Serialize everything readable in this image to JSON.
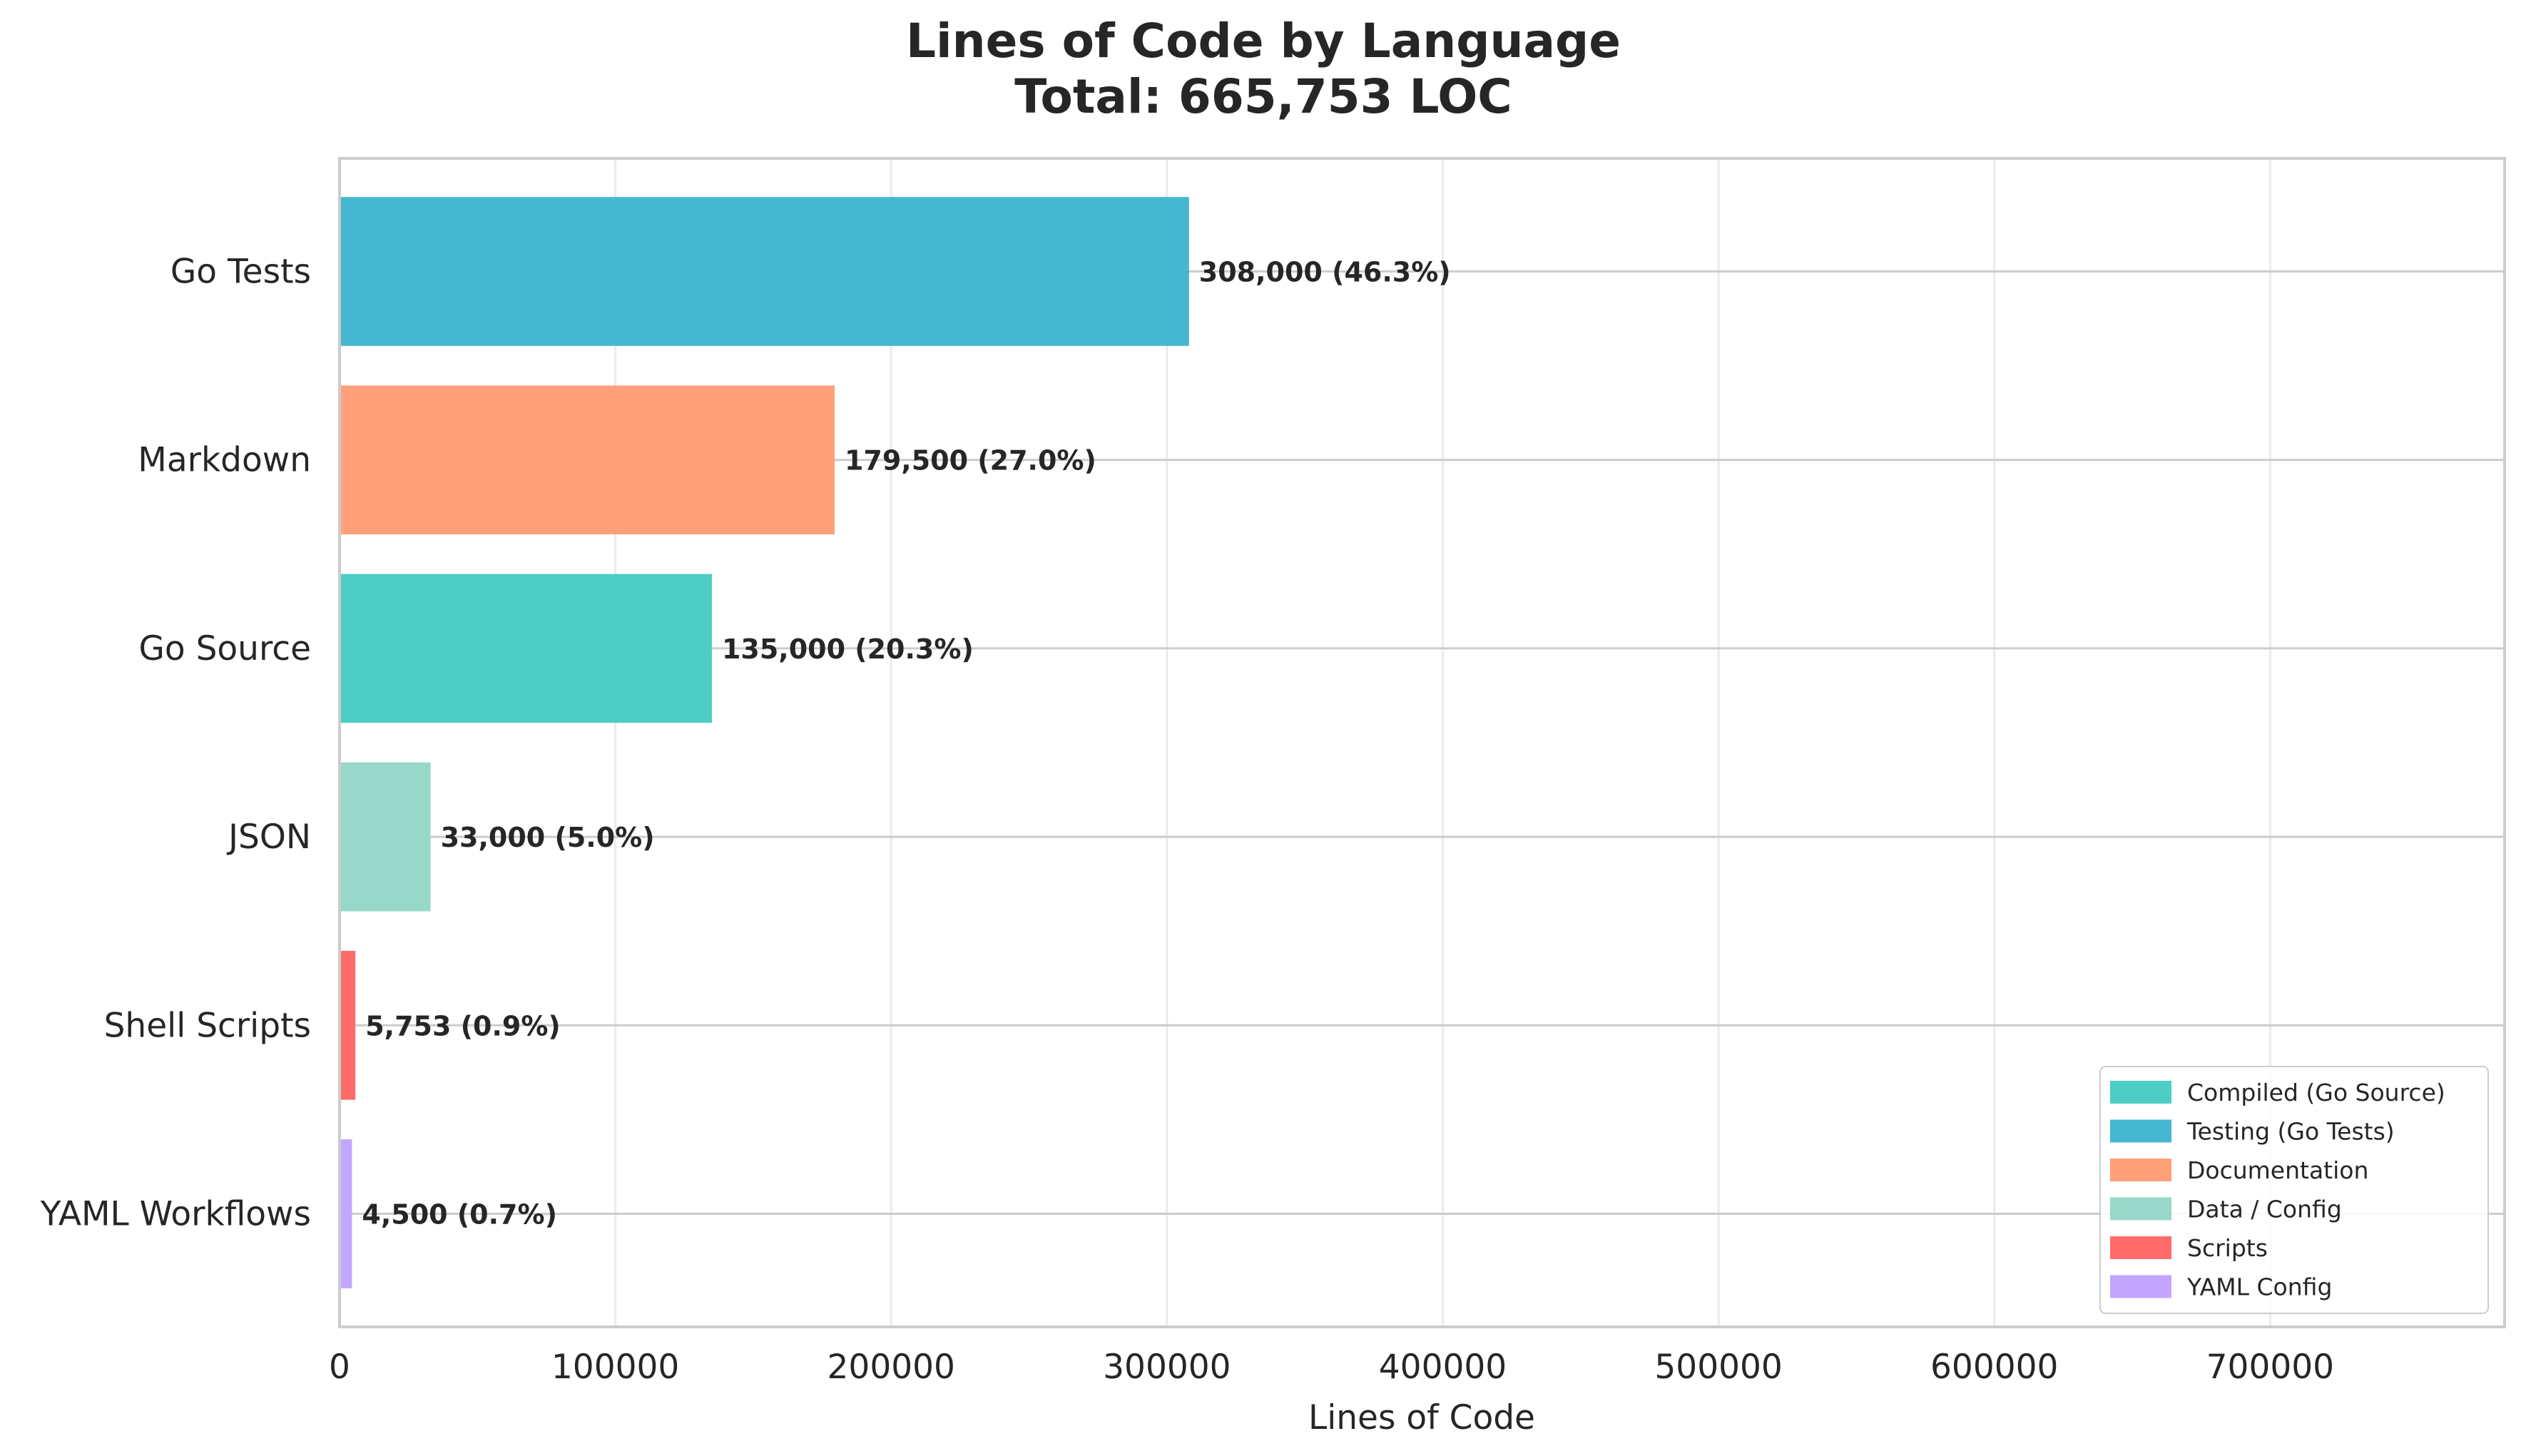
{
  "chart_data": {
    "type": "bar",
    "orientation": "horizontal",
    "title": "Lines of Code by Language",
    "subtitle": "Total: 665,753 LOC",
    "xlabel": "Lines of Code",
    "ylabel": "",
    "xlim": [
      0,
      785000
    ],
    "xticks": [
      0,
      100000,
      200000,
      300000,
      400000,
      500000,
      600000,
      700000
    ],
    "xtick_labels": [
      "0",
      "100000",
      "200000",
      "300000",
      "400000",
      "500000",
      "600000",
      "700000"
    ],
    "grid": true,
    "legend_position": "bottom-right",
    "categories": [
      "Go Tests",
      "Markdown",
      "Go Source",
      "JSON",
      "Shell Scripts",
      "YAML Workflows"
    ],
    "values": [
      308000,
      179500,
      135000,
      33000,
      5753,
      4500
    ],
    "value_labels": [
      "308,000 (46.3%)",
      "179,500 (27.0%)",
      "135,000 (20.3%)",
      "33,000 (5.0%)",
      "5,753 (0.9%)",
      "4,500 (0.7%)"
    ],
    "colors": [
      "#45b7d1",
      "#ffa07a",
      "#4ecdc4",
      "#98d8c8",
      "#ff6b6b",
      "#c3a6ff"
    ],
    "legend": [
      {
        "label": "Compiled (Go Source)",
        "color": "#4ecdc4"
      },
      {
        "label": "Testing (Go Tests)",
        "color": "#45b7d1"
      },
      {
        "label": "Documentation",
        "color": "#ffa07a"
      },
      {
        "label": "Data / Config",
        "color": "#98d8c8"
      },
      {
        "label": "Scripts",
        "color": "#ff6b6b"
      },
      {
        "label": "YAML Config",
        "color": "#c3a6ff"
      }
    ]
  }
}
